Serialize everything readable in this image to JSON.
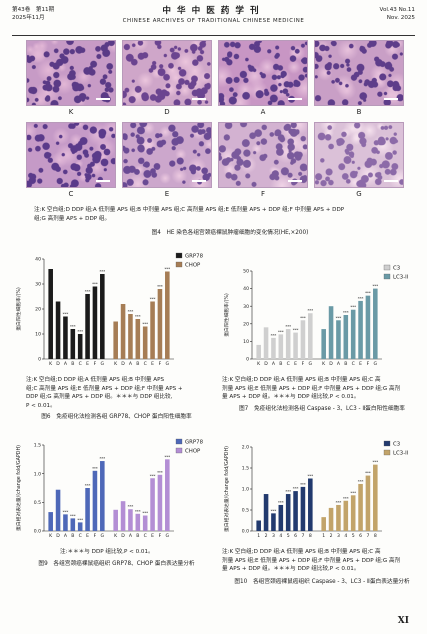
{
  "header": {
    "left_line1": "第43卷　第11期",
    "left_line2": "2025年11月",
    "center_cn": "中华中医药学刊",
    "center_en": "CHINESE ARCHIVES OF TRADITIONAL CHINESE MEDICINE",
    "right_line1": "Vol.43 No.11",
    "right_line2": "Nov. 2025"
  },
  "fig4": {
    "row1_labels": [
      "K",
      "D",
      "A",
      "B"
    ],
    "row2_labels": [
      "C",
      "E",
      "F",
      "G"
    ],
    "panels": [
      {
        "label": "K",
        "base": "#c79bc6",
        "nuc": "#5a3a86",
        "eo": "#e3b8d6"
      },
      {
        "label": "D",
        "base": "#cfa6c9",
        "nuc": "#6b4490",
        "eo": "#ecc6dd"
      },
      {
        "label": "A",
        "base": "#c896c4",
        "nuc": "#5b3c8a",
        "eo": "#e6bfdb"
      },
      {
        "label": "B",
        "base": "#c99fc6",
        "nuc": "#5e3d8a",
        "eo": "#e8c2dc"
      },
      {
        "label": "C",
        "base": "#c59ac7",
        "nuc": "#5a3a8a",
        "eo": "#e2b9d8"
      },
      {
        "label": "E",
        "base": "#cca7cc",
        "nuc": "#6a4a94",
        "eo": "#ecc9e0"
      },
      {
        "label": "F",
        "base": "#d3b2d1",
        "nuc": "#7a5a9c",
        "eo": "#f0d3e6"
      },
      {
        "label": "G",
        "base": "#dbc1d8",
        "nuc": "#8c6aa8",
        "eo": "#f6e2ee"
      }
    ],
    "note_line1": "注:K 空白组;D DDP 组;A 低剂量 APS 组;B 中剂量 APS 组;C 高剂量 APS 组;E 低剂量 APS + DDP 组;F 中剂量 APS + DDP",
    "note_line2": "组;G 高剂量 APS + DDP 组。",
    "title": "图4　HE 染色各组宫颈癌裸鼠肿瘤细胞的变化情况(HE,×200)"
  },
  "fig6": {
    "note_line1": "注:K 空白组;D DDP 组;A 低剂量 APS 组;B 中剂量 APS",
    "note_line2": "组;C 高剂量 APS 组;E 低剂量 APS + DDP 组;F 中剂量 APS +",
    "note_line3": "DDP 组;G 高剂量 APS + DDP 组。＊＊＊与 DDP 组比较,",
    "note_line4": "P < 0.01。",
    "title": "图6　免疫组化法检测各组 GRP78、CHOP 蛋白阳性细胞率"
  },
  "fig7": {
    "note_line1": "注:K 空白组;D DDP 组;A 低剂量 APS 组;B 中剂量 APS 组;C 高",
    "note_line2": "剂量 APS 组;E 低剂量 APS + DDP 组;F 中剂量 APS + DDP 组;G 高剂",
    "note_line3": "量 APS + DDP 组。＊＊＊与 DDP 组比较,P < 0.01。",
    "title": "图7　免疫组化法检测各组 Caspase - 3、LC3 - Ⅱ蛋白阳性细胞率"
  },
  "fig9": {
    "note_line1": "注:＊＊＊与 DDP 组比较,P < 0.01。",
    "title": "图9　各组宫颈癌裸鼠癌组织 GRP78、CHOP 蛋白表达量分析"
  },
  "fig10": {
    "note_line1": "注:K 空白组;D DDP 组;A 低剂量 APS 组;B 中剂量 APS 组;C 高",
    "note_line2": "剂量 APS 组;E 低剂量 APS + DDP 组;F 中剂量 APS + DDP 组;G 高剂",
    "note_line3": "量 APS + DDP 组。＊＊＊与 DDP 组比较,P < 0.01。",
    "title": "图10　各组宫颈癌裸鼠癌组织 Caspase - 3、LC3 - Ⅱ蛋白表达量分析"
  },
  "page_number": "XI",
  "chart_data": [
    {
      "id": "fig6",
      "type": "bar",
      "ylabel": "蛋白阳性细胞率/(%)",
      "ylim": [
        0,
        40
      ],
      "yticks": [
        0,
        10,
        20,
        30,
        40
      ],
      "legend_placement": "top-right",
      "series": [
        {
          "name": "GRP78",
          "color": "#1b1b1b",
          "categories": [
            "K",
            "D",
            "A",
            "B",
            "C",
            "E",
            "F",
            "G"
          ],
          "values": [
            36,
            23,
            17,
            12,
            10,
            26,
            29,
            34
          ],
          "stars": [
            "",
            "",
            "***",
            "***",
            "***",
            "***",
            "***",
            "***"
          ]
        },
        {
          "name": "CHOP",
          "color": "#a67d55",
          "categories": [
            "K",
            "D",
            "A",
            "B",
            "C",
            "E",
            "F",
            "G"
          ],
          "values": [
            15,
            22,
            18,
            16,
            13,
            23,
            28,
            35
          ],
          "stars": [
            "",
            "",
            "***",
            "***",
            "***",
            "***",
            "***",
            "***"
          ]
        }
      ]
    },
    {
      "id": "fig7",
      "type": "bar",
      "ylabel": "蛋白阳性细胞率/(%)",
      "ylim": [
        0,
        50
      ],
      "yticks": [
        0,
        10,
        20,
        30,
        40,
        50
      ],
      "legend_placement": "top-right",
      "series": [
        {
          "name": "C3",
          "color": "#cfcfcf",
          "categories": [
            "K",
            "D",
            "A",
            "B",
            "C",
            "E",
            "F",
            "G"
          ],
          "values": [
            8,
            18,
            12,
            14,
            17,
            15,
            22,
            26
          ],
          "stars": [
            "",
            "",
            "***",
            "***",
            "***",
            "***",
            "***",
            "***"
          ]
        },
        {
          "name": "LC3-II",
          "color": "#6a9aa6",
          "categories": [
            "K",
            "D",
            "A",
            "B",
            "C",
            "E",
            "F",
            "G"
          ],
          "values": [
            17,
            30,
            22,
            25,
            28,
            33,
            36,
            40
          ],
          "stars": [
            "",
            "",
            "***",
            "***",
            "***",
            "***",
            "***",
            "***"
          ]
        }
      ]
    },
    {
      "id": "fig9",
      "type": "bar",
      "ylabel": "蛋白相对表达量/(change fold/GAPDH)",
      "ylim": [
        0,
        1.5
      ],
      "yticks": [
        0.0,
        0.5,
        1.0,
        1.5
      ],
      "legend_placement": "top-right",
      "series": [
        {
          "name": "GRP78",
          "color": "#4e68b8",
          "categories": [
            "K",
            "D",
            "A",
            "B",
            "C",
            "E",
            "F",
            "G"
          ],
          "values": [
            0.33,
            0.72,
            0.29,
            0.22,
            0.15,
            0.75,
            1.05,
            1.22
          ],
          "stars": [
            "",
            "",
            "***",
            "***",
            "***",
            "***",
            "***",
            "***"
          ]
        },
        {
          "name": "CHOP",
          "color": "#b38ed4",
          "categories": [
            "K",
            "D",
            "A",
            "B",
            "C",
            "E",
            "F",
            "G"
          ],
          "values": [
            0.37,
            0.52,
            0.38,
            0.3,
            0.27,
            0.92,
            0.98,
            1.25
          ],
          "stars": [
            "",
            "",
            "***",
            "***",
            "***",
            "***",
            "***",
            "***"
          ]
        }
      ]
    },
    {
      "id": "fig10",
      "type": "bar",
      "ylabel": "蛋白相对表达量/(change fold/GAPDH)",
      "ylim": [
        0,
        2.0
      ],
      "yticks": [
        0.0,
        0.5,
        1.0,
        1.5,
        2.0
      ],
      "legend_placement": "top-right",
      "series": [
        {
          "name": "C3",
          "color": "#223a6e",
          "categories": [
            "1",
            "2",
            "3",
            "4",
            "5",
            "6",
            "7",
            "8"
          ],
          "values": [
            0.25,
            0.88,
            0.42,
            0.62,
            0.88,
            0.95,
            1.05,
            1.25
          ],
          "stars": [
            "",
            "",
            "***",
            "***",
            "***",
            "***",
            "***",
            "***"
          ]
        },
        {
          "name": "LC3-II",
          "color": "#c2a46a",
          "categories": [
            "1",
            "2",
            "3",
            "4",
            "5",
            "6",
            "7",
            "8"
          ],
          "values": [
            0.33,
            0.55,
            0.62,
            0.72,
            0.85,
            1.12,
            1.32,
            1.58
          ],
          "stars": [
            "",
            "",
            "***",
            "***",
            "***",
            "***",
            "***",
            "***"
          ]
        }
      ]
    }
  ]
}
